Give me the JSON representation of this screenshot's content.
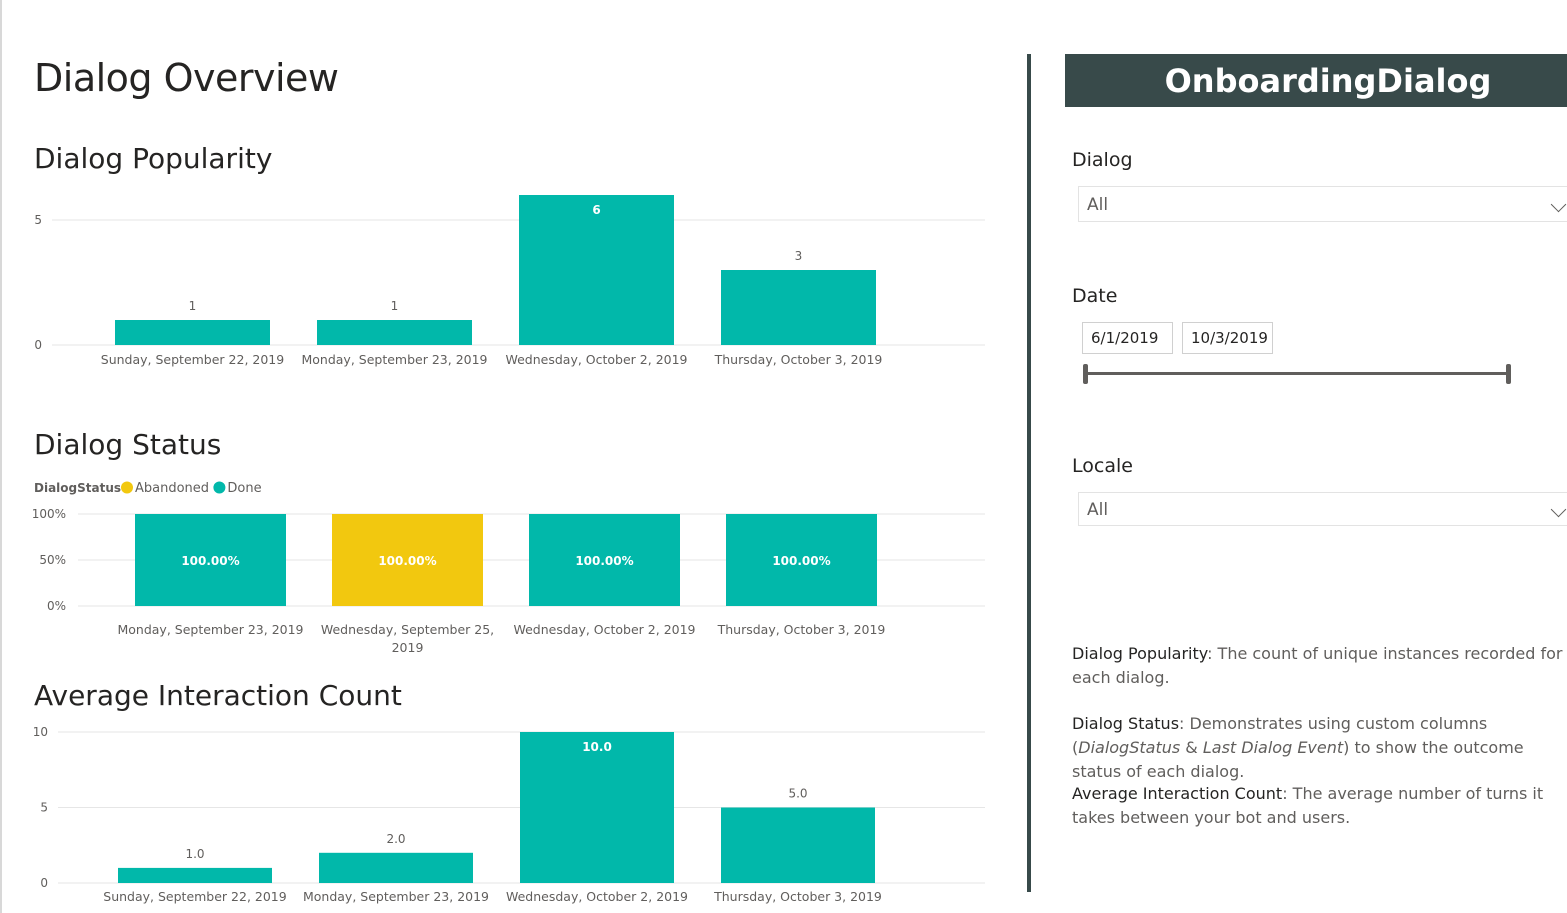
{
  "report": {
    "title": "Dialog Overview",
    "popularity_title": "Dialog Popularity",
    "status_title": "Dialog Status",
    "interaction_title": "Average Interaction Count"
  },
  "legend": {
    "title": "DialogStatus",
    "items": [
      {
        "label": "Abandoned",
        "color": "#f2c80f"
      },
      {
        "label": "Done",
        "color": "#01b8aa"
      }
    ]
  },
  "chart_data": [
    {
      "type": "bar",
      "title": "Dialog Popularity",
      "categories": [
        "Sunday, September 22, 2019",
        "Monday, September 23, 2019",
        "Wednesday, October 2, 2019",
        "Thursday, October 3, 2019"
      ],
      "values": [
        1,
        1,
        6,
        3
      ],
      "data_labels": [
        "1",
        "1",
        "6",
        "3"
      ],
      "yticks": [
        "0",
        "5"
      ],
      "ylim": [
        0,
        6
      ],
      "grid": true,
      "color": "#01b8aa"
    },
    {
      "type": "bar",
      "title": "Dialog Status",
      "categories": [
        "Monday, September 23, 2019",
        "Wednesday, September 25, 2019",
        "Wednesday, October 2, 2019",
        "Thursday, October 3, 2019"
      ],
      "series": [
        {
          "name": "Abandoned",
          "values": [
            0,
            100,
            0,
            0
          ],
          "color": "#f2c80f"
        },
        {
          "name": "Done",
          "values": [
            100,
            0,
            100,
            100
          ],
          "color": "#01b8aa"
        }
      ],
      "data_labels": [
        "100.00%",
        "100.00%",
        "100.00%",
        "100.00%"
      ],
      "yticks": [
        "0%",
        "50%",
        "100%"
      ],
      "ylim": [
        0,
        100
      ],
      "grid": true,
      "legend_placement": "top-left"
    },
    {
      "type": "bar",
      "title": "Average Interaction Count",
      "categories": [
        "Sunday, September 22, 2019",
        "Monday, September 23, 2019",
        "Wednesday, October 2, 2019",
        "Thursday, October 3, 2019"
      ],
      "values": [
        1.0,
        2.0,
        10.0,
        5.0
      ],
      "data_labels": [
        "1.0",
        "2.0",
        "10.0",
        "5.0"
      ],
      "yticks": [
        "0",
        "5",
        "10"
      ],
      "ylim": [
        0,
        10
      ],
      "grid": true,
      "color": "#01b8aa"
    }
  ],
  "sidebar": {
    "banner": "OnboardingDialog",
    "dialog_label": "Dialog",
    "dialog_value": "All",
    "date_label": "Date",
    "date_start": "6/1/2019",
    "date_end": "10/3/2019",
    "locale_label": "Locale",
    "locale_value": "All",
    "descriptions": {
      "popularity_term": "Dialog Popularity",
      "popularity_text": ": The count of unique instances recorded for each dialog.",
      "status_term": "Dialog Status",
      "status_text_1": ": Demonstrates using custom columns (",
      "status_em_1": "DialogStatus",
      "status_text_2": " & ",
      "status_em_2": "Last Dialog Event",
      "status_text_3": ") to show the outcome status of each dialog.",
      "interaction_term": "Average Interaction Count",
      "interaction_text": ": The average number of turns it takes between your bot and users."
    }
  },
  "colors": {
    "teal": "#01b8aa",
    "yellow": "#f2c80f",
    "banner": "#384a4a"
  }
}
